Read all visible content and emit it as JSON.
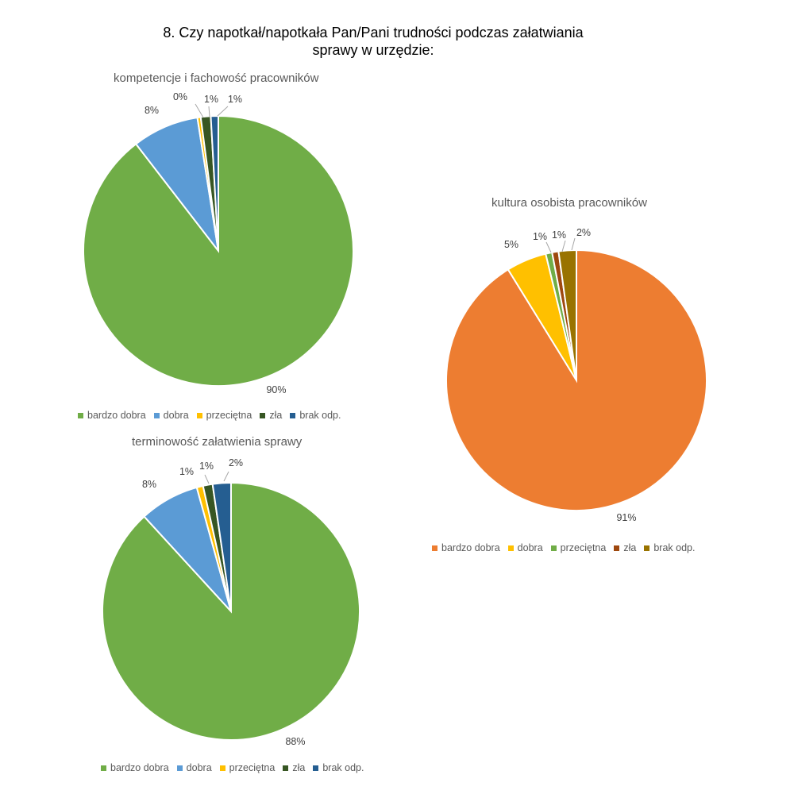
{
  "title_line1": "8. Czy napotkał/napotkała Pan/Pani trudności podczas załatwiania",
  "title_line2": "sprawy w urzędzie:",
  "chart_data": [
    {
      "type": "pie",
      "title": "kompetencje i fachowość pracowników",
      "categories": [
        "bardzo dobra",
        "dobra",
        "przeciętna",
        "zła",
        "brak odp."
      ],
      "values": [
        90,
        8,
        0.4,
        1.2,
        0.9
      ],
      "labels": [
        "90%",
        "8%",
        "0%",
        "1%",
        "1%"
      ],
      "colors": [
        "#70AD47",
        "#5B9BD5",
        "#FFC000",
        "#375623",
        "#255E91"
      ],
      "legend_position": "bottom"
    },
    {
      "type": "pie",
      "title": "kultura osobista pracowników",
      "categories": [
        "bardzo dobra",
        "dobra",
        "przeciętna",
        "zła",
        "brak odp."
      ],
      "values": [
        91.2,
        5,
        0.8,
        0.8,
        2.2
      ],
      "labels": [
        "91%",
        "5%",
        "1%",
        "1%",
        "2%"
      ],
      "colors": [
        "#ED7D31",
        "#FFC000",
        "#70AD47",
        "#9E480E",
        "#997300"
      ],
      "legend_position": "bottom"
    },
    {
      "type": "pie",
      "title": "terminowość załatwienia sprawy",
      "categories": [
        "bardzo dobra",
        "dobra",
        "przeciętna",
        "zła",
        "brak odp."
      ],
      "values": [
        88.2,
        7.5,
        0.8,
        1.2,
        2.3
      ],
      "labels": [
        "88%",
        "8%",
        "1%",
        "1%",
        "2%"
      ],
      "colors": [
        "#70AD47",
        "#5B9BD5",
        "#FFC000",
        "#375623",
        "#255E91"
      ],
      "legend_position": "bottom"
    }
  ]
}
